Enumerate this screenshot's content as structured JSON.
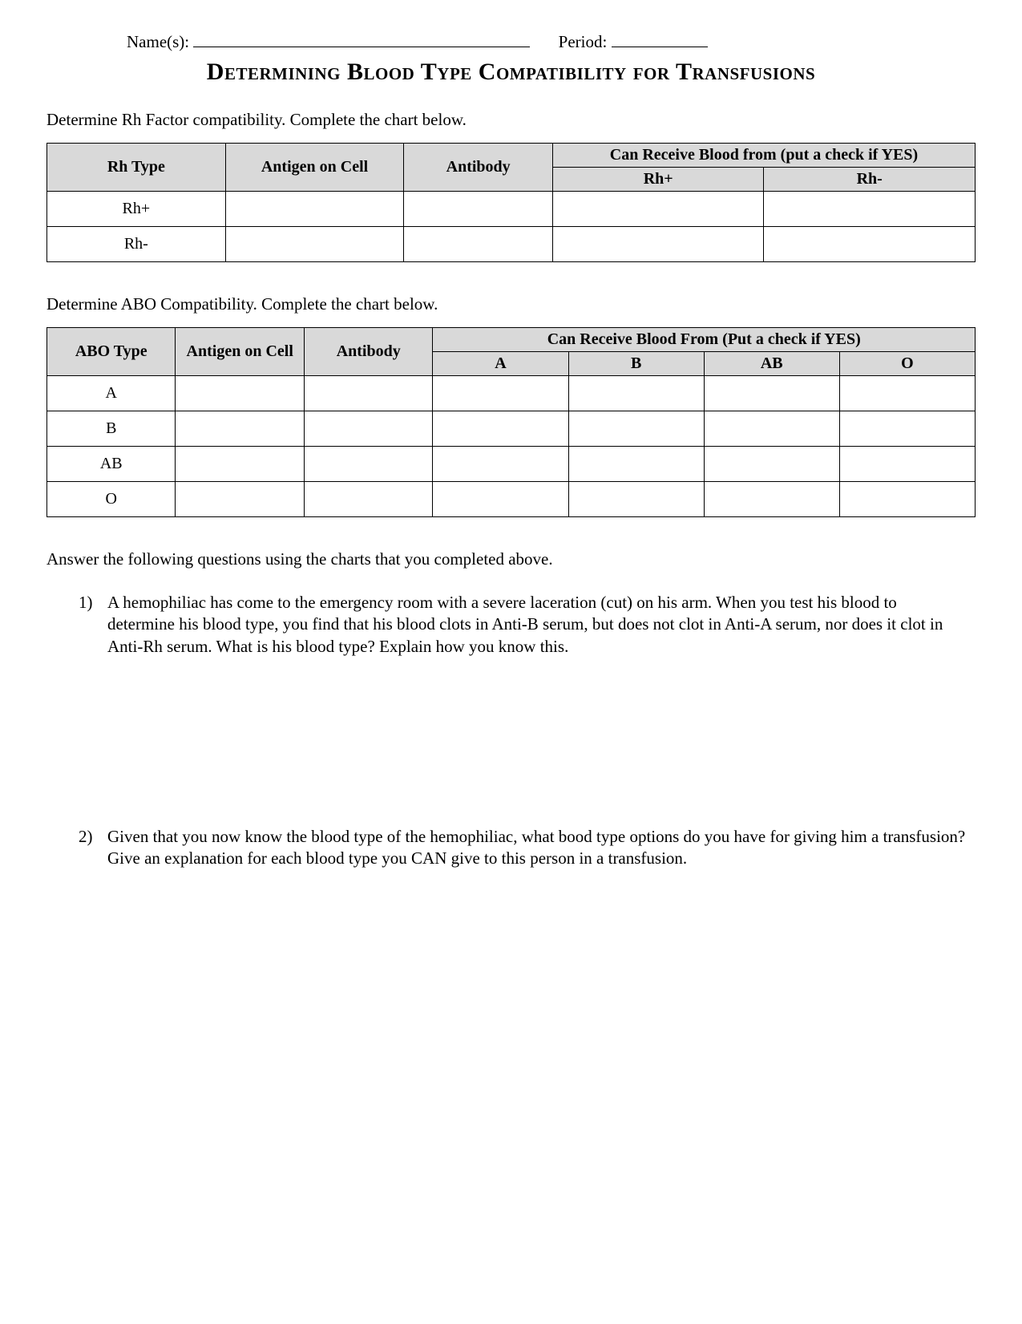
{
  "header": {
    "name_label": "Name(s): ",
    "period_label": "Period:"
  },
  "title": "Determining Blood Type Compatibility for Transfusions",
  "rh_section": {
    "instruction": "Determine Rh Factor compatibility. Complete the chart below.",
    "columns": {
      "rh_type": "Rh Type",
      "antigen": "Antigen on Cell",
      "antibody": "Antibody",
      "receive_header": "Can Receive Blood from (put a check if YES)",
      "sub_rh_plus": "Rh+",
      "sub_rh_minus": "Rh-"
    },
    "rows": [
      {
        "type": "Rh+",
        "antigen": "",
        "antibody": "",
        "from_plus": "",
        "from_minus": ""
      },
      {
        "type": "Rh-",
        "antigen": "",
        "antibody": "",
        "from_plus": "",
        "from_minus": ""
      }
    ]
  },
  "abo_section": {
    "instruction": "Determine ABO Compatibility. Complete the chart below.",
    "columns": {
      "abo_type": "ABO Type",
      "antigen": "Antigen on Cell",
      "antibody": "Antibody",
      "receive_header": "Can Receive Blood From (Put a check if YES)",
      "sub_a": "A",
      "sub_b": "B",
      "sub_ab": "AB",
      "sub_o": "O"
    },
    "rows": [
      {
        "type": "A",
        "antigen": "",
        "antibody": "",
        "a": "",
        "b": "",
        "ab": "",
        "o": ""
      },
      {
        "type": "B",
        "antigen": "",
        "antibody": "",
        "a": "",
        "b": "",
        "ab": "",
        "o": ""
      },
      {
        "type": "AB",
        "antigen": "",
        "antibody": "",
        "a": "",
        "b": "",
        "ab": "",
        "o": ""
      },
      {
        "type": "O",
        "antigen": "",
        "antibody": "",
        "a": "",
        "b": "",
        "ab": "",
        "o": ""
      }
    ]
  },
  "questions_intro": "Answer the following questions using the charts that you completed above.",
  "questions": [
    {
      "num": "1)",
      "text": "A hemophiliac has come to the emergency room with a severe laceration (cut) on his arm. When you test his blood to determine his blood type, you find that his blood clots in Anti-B serum, but does not clot in Anti-A serum, nor does it clot in Anti-Rh serum. What is his blood type? Explain how you know this."
    },
    {
      "num": "2)",
      "text": " Given that you now know the blood type of the hemophiliac, what bood type options do you have for giving him a transfusion? Give an explanation for each blood type you CAN give to this person in a transfusion."
    }
  ],
  "colors": {
    "background": "#ffffff",
    "text": "#000000",
    "table_header_bg": "#d9d9d9",
    "border": "#000000"
  }
}
